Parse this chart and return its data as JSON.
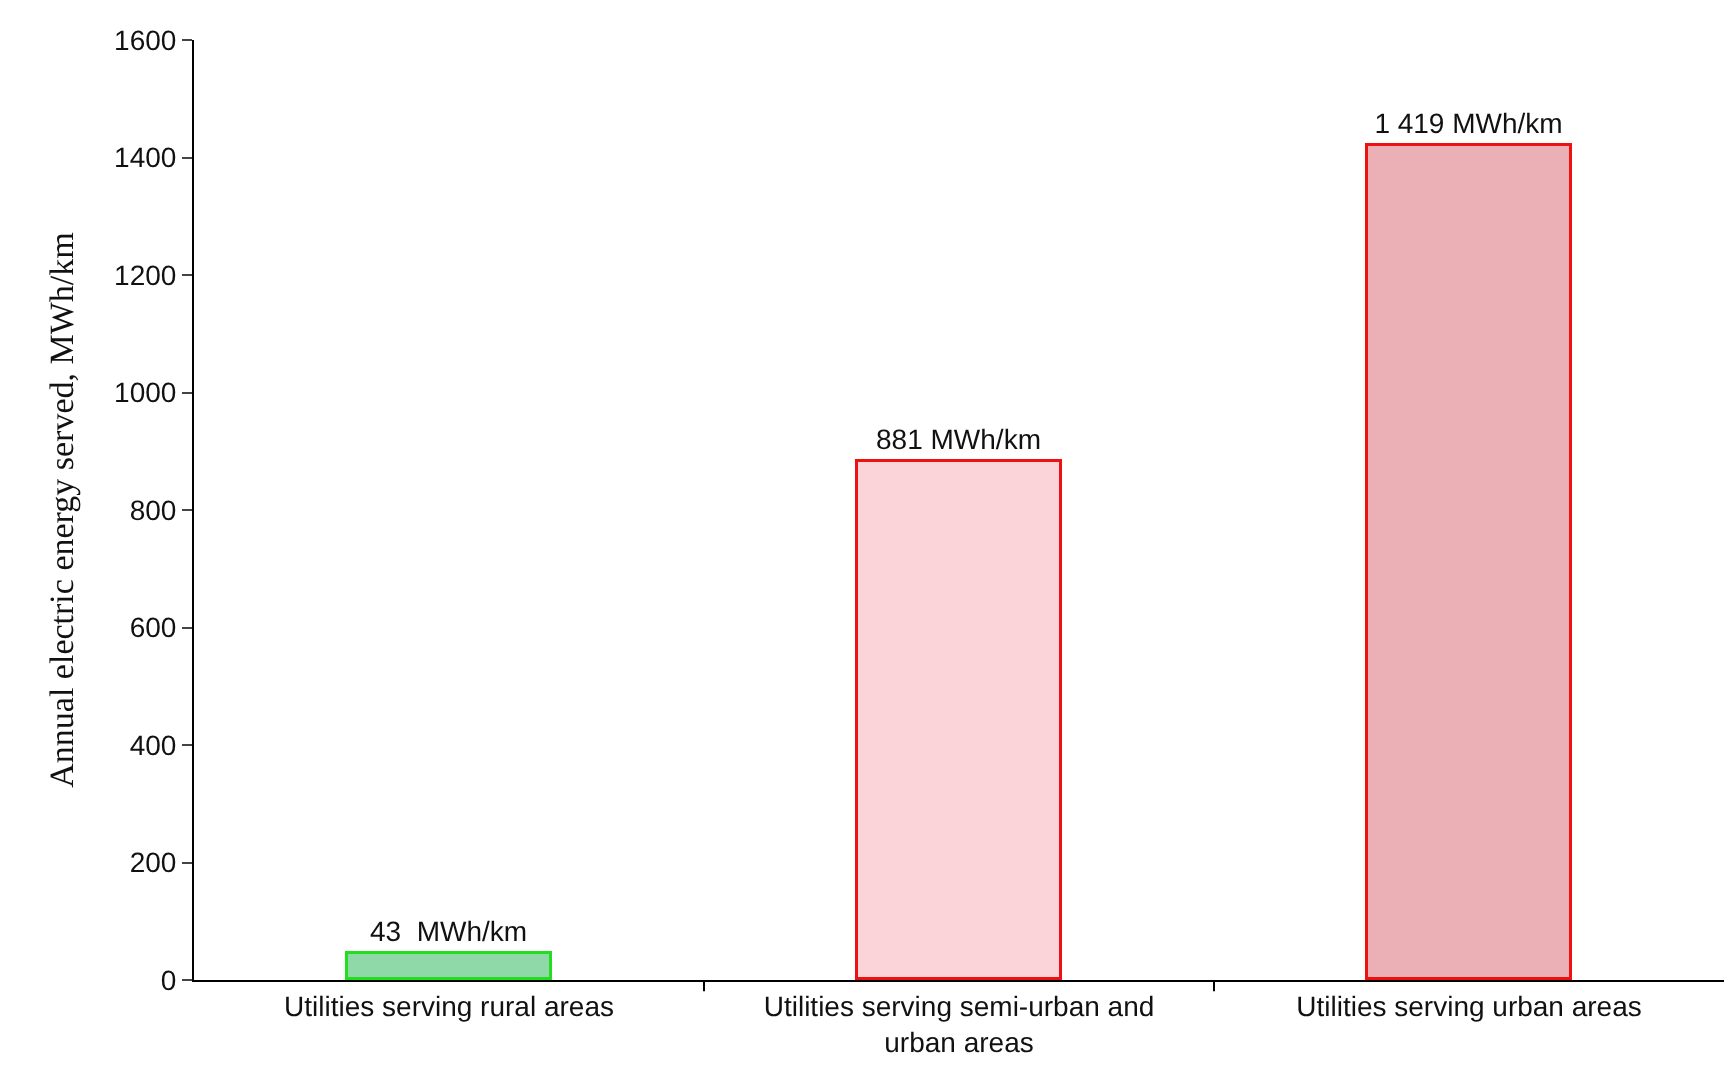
{
  "chart_data": {
    "type": "bar",
    "ylabel": "Annual electric energy served, MWh/km",
    "categories": [
      "Utilities serving rural areas",
      "Utilities serving semi-urban and urban areas",
      "Utilities serving urban areas"
    ],
    "values": [
      43,
      881,
      1419
    ],
    "value_labels": [
      "43  MWh/km",
      "881 MWh/km",
      "1 419 MWh/km"
    ],
    "colors": [
      "#8fd9a8",
      "#fad4d8",
      "#eab0b5"
    ],
    "ylim": [
      0,
      1600
    ],
    "yticks": [
      0,
      200,
      400,
      600,
      800,
      1000,
      1200,
      1400,
      1600
    ]
  }
}
